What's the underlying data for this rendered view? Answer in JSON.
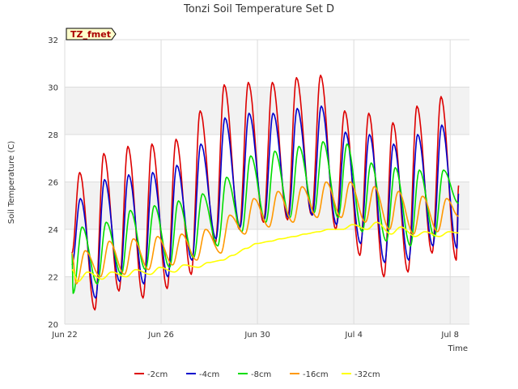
{
  "chart_data": {
    "type": "line",
    "title": "Tonzi Soil Temperature Set D",
    "xlabel": "Time",
    "ylabel": "Soil Temperature (C)",
    "ylim": [
      20,
      32
    ],
    "xlim": [
      0,
      16.8
    ],
    "yticks": [
      20,
      22,
      24,
      26,
      28,
      30,
      32
    ],
    "xticks": [
      {
        "label": "Jun 22",
        "day": 0
      },
      {
        "label": "Jun 26",
        "day": 4
      },
      {
        "label": "Jun 30",
        "day": 8
      },
      {
        "label": "Jul 4",
        "day": 12
      },
      {
        "label": "Jul 8",
        "day": 16
      }
    ],
    "grid": true,
    "banded_background": true,
    "legend_position": "bottom",
    "badge": "TZ_fmet",
    "x_start_day": 0.3,
    "x_end_day": 16.35,
    "series": [
      {
        "name": "-2cm",
        "color": "#dd0000",
        "line_width": 1.6,
        "daily_max": [
          26.4,
          27.2,
          27.5,
          27.6,
          27.8,
          29.0,
          30.1,
          30.2,
          30.2,
          30.4,
          30.5,
          29.0,
          28.9,
          28.5,
          29.2,
          29.6,
          29.0
        ],
        "daily_min": [
          20.1,
          20.6,
          21.4,
          21.1,
          21.5,
          22.1,
          23.4,
          24.0,
          24.3,
          24.4,
          24.6,
          24.0,
          22.9,
          22.0,
          22.2,
          23.0,
          22.7
        ],
        "start": 23.0,
        "peak_phase": 0.62,
        "trough_phase": 0.25
      },
      {
        "name": "-4cm",
        "color": "#0000cc",
        "line_width": 1.6,
        "daily_max": [
          25.3,
          26.1,
          26.3,
          26.4,
          26.7,
          27.6,
          28.7,
          28.9,
          28.9,
          29.1,
          29.2,
          28.1,
          28.0,
          27.6,
          28.0,
          28.4,
          27.8
        ],
        "daily_min": [
          20.6,
          21.1,
          21.8,
          21.7,
          22.0,
          22.7,
          23.6,
          24.1,
          24.4,
          24.5,
          24.6,
          24.2,
          23.4,
          22.6,
          22.7,
          23.3,
          23.2
        ],
        "start": 22.5,
        "peak_phase": 0.65,
        "trough_phase": 0.28
      },
      {
        "name": "-8cm",
        "color": "#00dd00",
        "line_width": 1.6,
        "daily_max": [
          24.1,
          24.3,
          24.8,
          25.0,
          25.2,
          25.5,
          26.2,
          27.1,
          27.3,
          27.5,
          27.7,
          27.6,
          26.8,
          26.6,
          26.5,
          26.5,
          26.6
        ],
        "daily_min": [
          21.3,
          21.7,
          22.1,
          22.3,
          22.4,
          22.8,
          23.3,
          23.9,
          24.3,
          24.5,
          24.7,
          24.5,
          23.9,
          23.5,
          23.3,
          23.7,
          23.6
        ],
        "start": 23.0,
        "peak_phase": 0.72,
        "trough_phase": 0.35
      },
      {
        "name": "-16cm",
        "color": "#ff9900",
        "line_width": 1.6,
        "daily_max": [
          23.1,
          23.5,
          23.6,
          23.7,
          23.8,
          24.0,
          24.6,
          25.3,
          25.6,
          25.8,
          26.0,
          26.0,
          25.8,
          25.6,
          25.4,
          25.3,
          25.2
        ],
        "daily_min": [
          21.7,
          22.0,
          22.1,
          22.3,
          22.5,
          22.7,
          23.0,
          23.8,
          24.1,
          24.3,
          24.5,
          24.5,
          24.3,
          24.0,
          23.8,
          23.9,
          23.9
        ],
        "start": 23.0,
        "peak_phase": 0.85,
        "trough_phase": 0.48
      },
      {
        "name": "-32cm",
        "color": "#ffff00",
        "line_width": 1.6,
        "daily_max": [
          22.2,
          22.2,
          22.3,
          22.4,
          22.5,
          22.6,
          22.9,
          23.4,
          23.6,
          23.8,
          24.0,
          24.2,
          24.3,
          24.1,
          23.9,
          23.9,
          23.9
        ],
        "daily_min": [
          21.8,
          21.9,
          22.0,
          22.1,
          22.2,
          22.4,
          22.7,
          23.2,
          23.5,
          23.7,
          23.9,
          24.0,
          24.0,
          23.8,
          23.7,
          23.7,
          23.8
        ],
        "start": 22.3,
        "peak_phase": 0.95,
        "trough_phase": 0.55
      }
    ]
  }
}
